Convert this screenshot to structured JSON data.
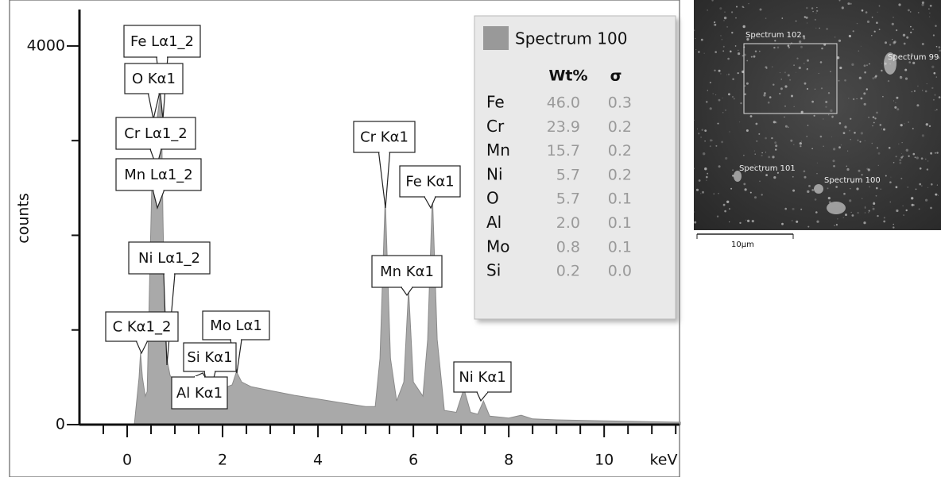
{
  "chart_data": {
    "type": "area",
    "x_label": "keV",
    "y_label": "counts",
    "x": [
      0.15,
      0.2,
      0.25,
      0.28,
      0.32,
      0.38,
      0.42,
      0.47,
      0.52,
      0.57,
      0.62,
      0.67,
      0.71,
      0.75,
      0.8,
      0.85,
      0.9,
      1.0,
      1.2,
      1.4,
      1.49,
      1.6,
      1.74,
      1.85,
      2.0,
      2.2,
      2.29,
      2.4,
      2.6,
      3.0,
      3.5,
      4.0,
      4.5,
      5.0,
      5.2,
      5.3,
      5.41,
      5.52,
      5.65,
      5.8,
      5.9,
      6.0,
      6.2,
      6.3,
      6.4,
      6.5,
      6.65,
      6.9,
      7.06,
      7.2,
      7.35,
      7.47,
      7.6,
      8.0,
      8.26,
      8.5,
      9.0,
      10.0,
      11.0,
      11.6
    ],
    "series": [
      {
        "name": "Spectrum 100",
        "color": "#a9a9a9",
        "values": [
          0,
          250,
          500,
          760,
          500,
          300,
          350,
          1500,
          2600,
          2900,
          3200,
          3400,
          3650,
          2200,
          900,
          650,
          520,
          450,
          400,
          400,
          470,
          380,
          420,
          360,
          380,
          420,
          560,
          450,
          400,
          360,
          310,
          270,
          230,
          190,
          190,
          700,
          2400,
          700,
          250,
          450,
          1430,
          450,
          300,
          900,
          2430,
          900,
          150,
          130,
          380,
          130,
          110,
          250,
          90,
          70,
          100,
          60,
          50,
          40,
          30,
          25
        ]
      }
    ],
    "xlim": [
      -1,
      11.58
    ],
    "ylim": [
      0,
      4385
    ],
    "xticks": [
      0,
      2,
      4,
      6,
      8,
      10
    ],
    "xminorticks": [
      -0.5,
      0.5,
      1,
      1.5,
      2.5,
      3,
      3.5,
      4.5,
      5,
      5.5,
      6.5,
      7,
      7.5,
      8.5,
      9,
      9.5,
      10.5,
      11,
      11.5
    ],
    "yticks": [
      0,
      4000
    ],
    "yminorticks": [
      1000,
      2000,
      3000
    ],
    "annotations": [
      "Fe Lα1_2",
      "O Kα1",
      "Cr Lα1_2",
      "Mn Lα1_2",
      "Ni Lα1_2",
      "C Kα1_2",
      "Mo Lα1",
      "Si Kα1",
      "Al Kα1",
      "Cr Kα1",
      "Fe Kα1",
      "Mn Kα1",
      "Ni Kα1"
    ]
  },
  "table": {
    "columns": [
      "Wt%",
      "σ"
    ],
    "rows": [
      [
        "Fe",
        "46.0",
        "0.3"
      ],
      [
        "Cr",
        "23.9",
        "0.2"
      ],
      [
        "Mn",
        "15.7",
        "0.2"
      ],
      [
        "Ni",
        "5.7",
        "0.2"
      ],
      [
        "O",
        "5.7",
        "0.1"
      ],
      [
        "Al",
        "2.0",
        "0.1"
      ],
      [
        "Mo",
        "0.8",
        "0.1"
      ],
      [
        "Si",
        "0.2",
        "0.0"
      ]
    ]
  },
  "image": {
    "labels": [
      "Spectrum 102",
      "Spectrum 99",
      "Spectrum 101",
      "Spectrum 100"
    ],
    "scale": "10µm"
  }
}
